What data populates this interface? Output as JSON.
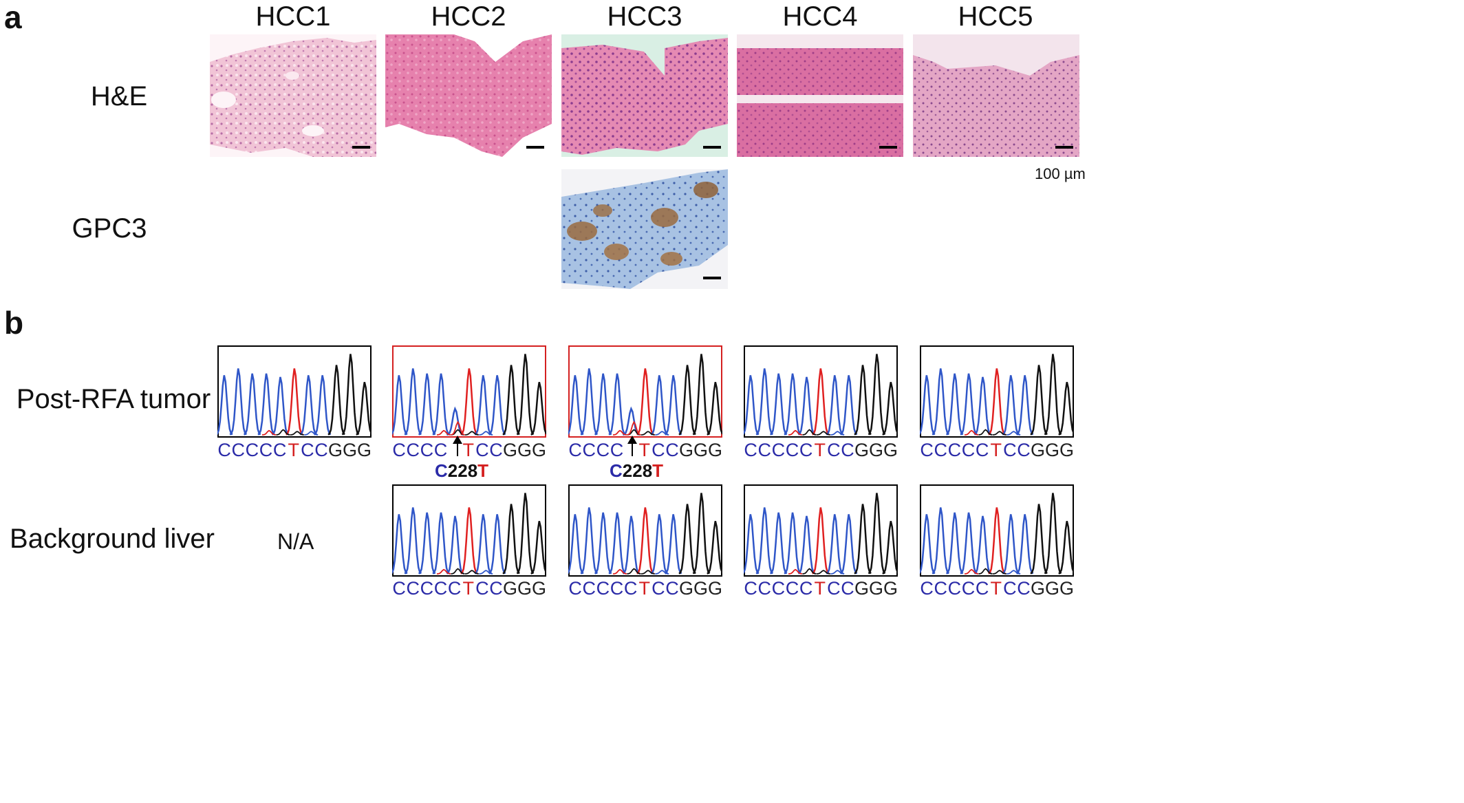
{
  "panel_a": {
    "letter": "a",
    "columns": [
      "HCC1",
      "HCC2",
      "HCC3",
      "HCC4",
      "HCC5"
    ],
    "rows": [
      "H&E",
      "GPC3"
    ],
    "scale_label": "100 µm"
  },
  "panel_b": {
    "letter": "b",
    "rows": [
      "Post-RFA tumor",
      "Background liver"
    ],
    "na_label": "N/A",
    "mutation": {
      "ref": "C",
      "pos": "228",
      "alt": "T"
    },
    "sequences": {
      "wild_type": [
        "C",
        "C",
        "C",
        "C",
        "C",
        "T",
        "C",
        "C",
        "G",
        "G",
        "G"
      ],
      "mutant": [
        "C",
        "C",
        "C",
        "C",
        "",
        "T",
        "C",
        "C",
        "G",
        "G",
        "G"
      ]
    },
    "base_colors": {
      "C": "#2b2ba8",
      "T": "#d42020",
      "G": "#222222"
    },
    "highlight_color": "#d42020"
  }
}
